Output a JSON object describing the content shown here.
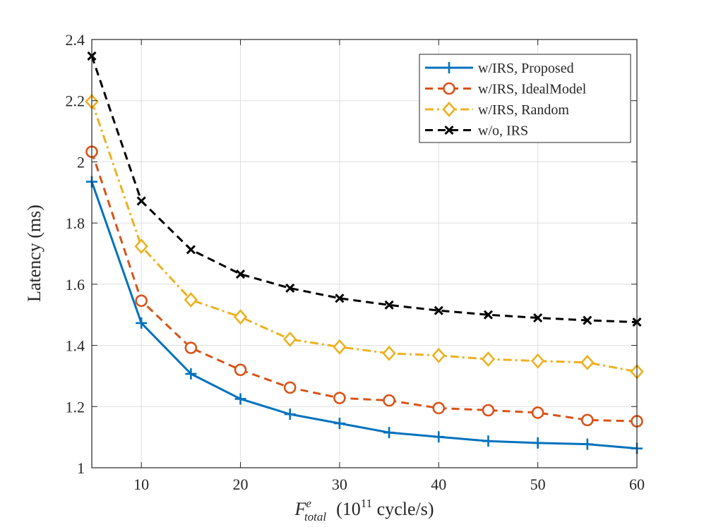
{
  "chart_data": {
    "type": "line",
    "title": "",
    "xlabel": {
      "main": "F",
      "superscript": "e",
      "subscript": "total",
      "unit_prefix": "(10",
      "unit_exponent": "11",
      "unit_suffix": " cycle/s)"
    },
    "ylabel": "Latency (ms)",
    "xlim": [
      5,
      60
    ],
    "ylim": [
      1,
      2.4
    ],
    "xticks": [
      10,
      20,
      30,
      40,
      50,
      60
    ],
    "xtick_labels": [
      "10",
      "20",
      "30",
      "40",
      "50",
      "60"
    ],
    "yticks": [
      1,
      1.2,
      1.4,
      1.6,
      1.8,
      2,
      2.2,
      2.4
    ],
    "ytick_labels": [
      "1",
      "1.2",
      "1.4",
      "1.6",
      "1.8",
      "2",
      "2.2",
      "2.4"
    ],
    "grid": true,
    "legend_position": "top-right",
    "x": [
      5,
      10,
      15,
      20,
      25,
      30,
      35,
      40,
      45,
      50,
      55,
      60
    ],
    "series": [
      {
        "name": "w/IRS, Proposed",
        "color": "#0072BD",
        "line_style": "solid",
        "marker": "plus",
        "values": [
          1.935,
          1.473,
          1.307,
          1.225,
          1.175,
          1.145,
          1.115,
          1.101,
          1.087,
          1.081,
          1.077,
          1.063
        ]
      },
      {
        "name": "w/IRS, IdealModel",
        "color": "#D95319",
        "line_style": "dashed",
        "marker": "circle",
        "values": [
          2.033,
          1.546,
          1.392,
          1.32,
          1.262,
          1.228,
          1.22,
          1.195,
          1.188,
          1.18,
          1.156,
          1.152
        ]
      },
      {
        "name": "w/IRS, Random",
        "color": "#EDB120",
        "line_style": "dashdot",
        "marker": "diamond",
        "values": [
          2.197,
          1.724,
          1.549,
          1.493,
          1.42,
          1.395,
          1.374,
          1.367,
          1.355,
          1.349,
          1.344,
          1.314
        ]
      },
      {
        "name": "w/o, IRS",
        "color": "#000000",
        "line_style": "dashed",
        "marker": "x",
        "values": [
          2.346,
          1.872,
          1.713,
          1.633,
          1.587,
          1.554,
          1.532,
          1.514,
          1.5,
          1.49,
          1.482,
          1.476
        ]
      }
    ]
  }
}
